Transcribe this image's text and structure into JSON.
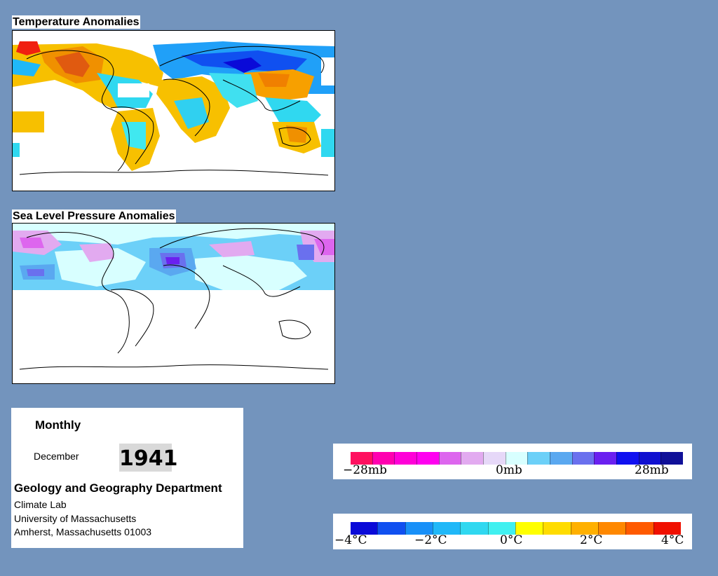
{
  "maps": {
    "temperature_title": "Temperature Anomalies",
    "pressure_title": "Sea Level Pressure Anomalies"
  },
  "info": {
    "period": "Monthly",
    "month": "December",
    "year": "1941",
    "department": "Geology and Geography Department",
    "lab": "Climate Lab",
    "university": "University of Massachusetts",
    "city": "Amherst, Massachusetts 01003"
  },
  "pressure_legend": {
    "labels": [
      "−28mb",
      "0mb",
      "28mb"
    ],
    "colors": [
      "#ff1060",
      "#ff00b0",
      "#ff00d8",
      "#ff00f0",
      "#dd66ee",
      "#e2aaf0",
      "#e6d8f8",
      "#d8ffff",
      "#6cd0f8",
      "#5aa8f0",
      "#6a70ee",
      "#6a20f0",
      "#1010f0",
      "#1010d0",
      "#101098"
    ]
  },
  "temperature_legend": {
    "labels": [
      "−4°C",
      "−2°C",
      "0°C",
      "2°C",
      "4°C"
    ],
    "colors": [
      "#0a0ad8",
      "#1050f0",
      "#1890f8",
      "#20b8f8",
      "#30d8f0",
      "#40f0f0",
      "#ffff00",
      "#ffdc00",
      "#ffb000",
      "#ff8800",
      "#ff5a00",
      "#f01000"
    ]
  }
}
